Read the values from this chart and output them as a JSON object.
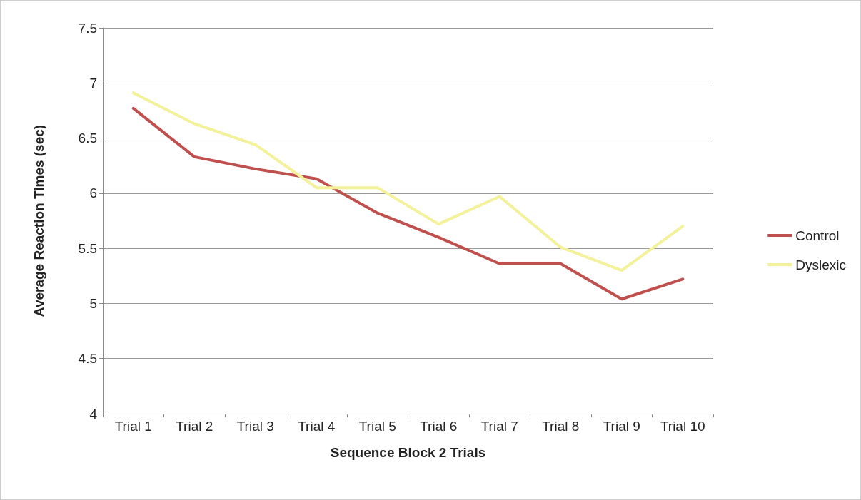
{
  "chart_data": {
    "type": "line",
    "xlabel": "Sequence Block 2 Trials",
    "ylabel": "Average Reaction Times (sec)",
    "categories": [
      "Trial 1",
      "Trial 2",
      "Trial 3",
      "Trial 4",
      "Trial 5",
      "Trial 6",
      "Trial 7",
      "Trial 8",
      "Trial 9",
      "Trial 10"
    ],
    "series": [
      {
        "name": "Control",
        "color": "#c0504d",
        "values": [
          6.77,
          6.33,
          6.22,
          6.13,
          5.82,
          5.6,
          5.36,
          5.36,
          5.04,
          5.22
        ]
      },
      {
        "name": "Dyslexic",
        "color": "#f3f19a",
        "values": [
          6.91,
          6.63,
          6.44,
          6.05,
          6.05,
          5.72,
          5.97,
          5.51,
          5.3,
          5.7
        ]
      }
    ],
    "ylim": [
      4,
      7.5
    ],
    "yticks": [
      4,
      4.5,
      5,
      5.5,
      6,
      6.5,
      7,
      7.5
    ],
    "grid": "y",
    "legend": "right",
    "marker": "none",
    "line_style": "solid"
  }
}
